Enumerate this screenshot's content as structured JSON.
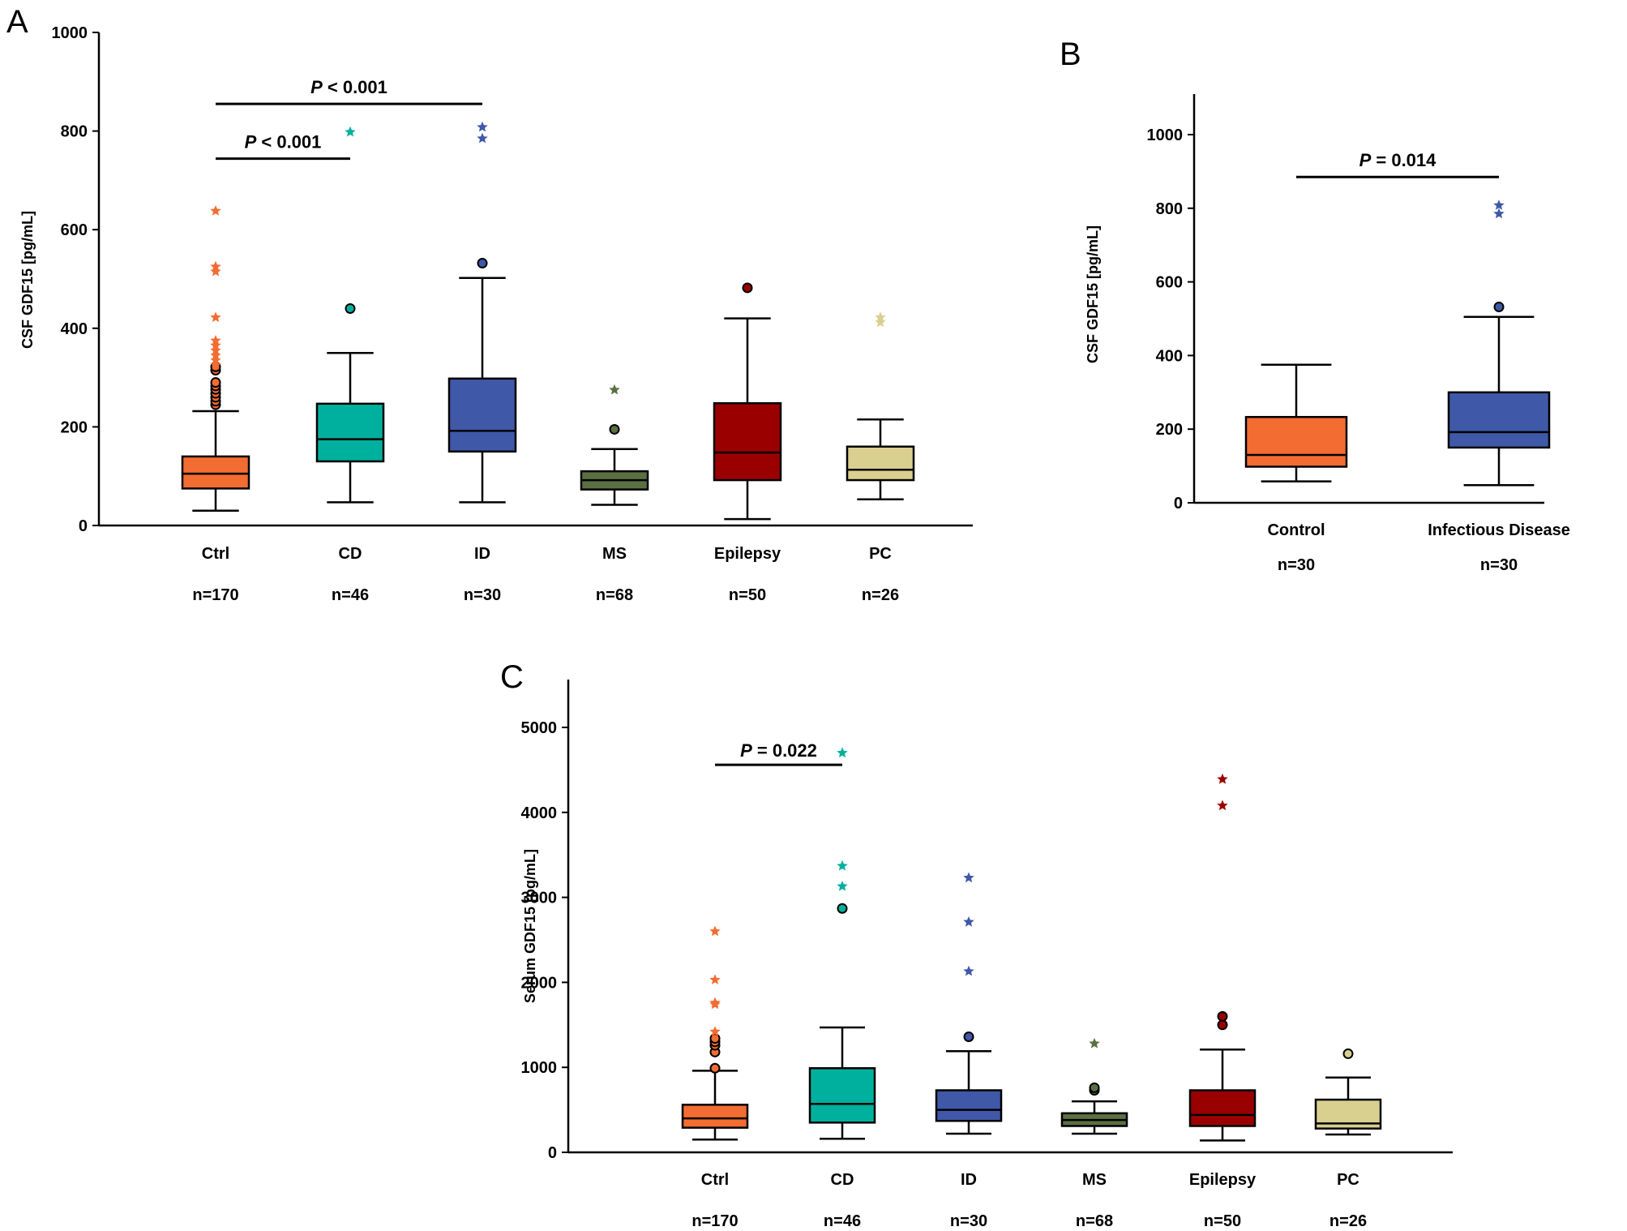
{
  "figure": {
    "panel_letters": [
      "A",
      "B",
      "C"
    ]
  },
  "chart_data": [
    {
      "panel": "A",
      "type": "box",
      "ylabel": "CSF GDF15 [pg/mL]",
      "ylim": [
        0,
        1000
      ],
      "yticks": [
        0,
        200,
        400,
        600,
        800,
        1000
      ],
      "categories": [
        "Ctrl",
        "CD",
        "ID",
        "MS",
        "Epilepsy",
        "PC"
      ],
      "n_labels": [
        "n=170",
        "n=46",
        "n=30",
        "n=68",
        "n=50",
        "n=26"
      ],
      "colors": [
        "#F36C32",
        "#00B09E",
        "#3F58A8",
        "#5A7042",
        "#9B0000",
        "#D9CF8F"
      ],
      "boxes": [
        {
          "whisker_low": 30,
          "q1": 75,
          "median": 105,
          "q3": 140,
          "whisker_high": 232,
          "outliers": [
            245,
            252,
            260,
            268,
            276,
            283,
            290,
            315,
            322
          ],
          "extremes": [
            325,
            335,
            345,
            355,
            365,
            375,
            422,
            515,
            525,
            638
          ]
        },
        {
          "whisker_low": 47,
          "q1": 130,
          "median": 175,
          "q3": 247,
          "whisker_high": 350,
          "outliers": [
            440
          ],
          "extremes": [
            798
          ]
        },
        {
          "whisker_low": 47,
          "q1": 150,
          "median": 192,
          "q3": 298,
          "whisker_high": 502,
          "outliers": [
            532
          ],
          "extremes": [
            785,
            808
          ]
        },
        {
          "whisker_low": 42,
          "q1": 73,
          "median": 92,
          "q3": 110,
          "whisker_high": 155,
          "outliers": [
            195
          ],
          "extremes": [
            275
          ]
        },
        {
          "whisker_low": 13,
          "q1": 92,
          "median": 148,
          "q3": 248,
          "whisker_high": 420,
          "outliers": [
            482
          ],
          "extremes": []
        },
        {
          "whisker_low": 53,
          "q1": 92,
          "median": 113,
          "q3": 160,
          "whisker_high": 215,
          "outliers": [],
          "extremes": [
            412,
            422
          ]
        }
      ],
      "comparisons": [
        {
          "from": "Ctrl",
          "to": "ID",
          "y": 855,
          "p_symbol": "P",
          "p_rest": " < 0.001"
        },
        {
          "from": "Ctrl",
          "to": "CD",
          "y": 744,
          "p_symbol": "P",
          "p_rest": " < 0.001"
        }
      ]
    },
    {
      "panel": "B",
      "type": "box",
      "ylabel": "CSF GDF15 [pg/mL]",
      "ylim": [
        0,
        1100
      ],
      "yticks": [
        0,
        200,
        400,
        600,
        800,
        1000
      ],
      "categories": [
        "Control",
        "Infectious Disease"
      ],
      "n_labels": [
        "n=30",
        "n=30"
      ],
      "colors": [
        "#F36C32",
        "#3F58A8"
      ],
      "boxes": [
        {
          "whisker_low": 58,
          "q1": 98,
          "median": 130,
          "q3": 233,
          "whisker_high": 375,
          "outliers": [],
          "extremes": []
        },
        {
          "whisker_low": 48,
          "q1": 150,
          "median": 192,
          "q3": 300,
          "whisker_high": 505,
          "outliers": [
            532
          ],
          "extremes": [
            785,
            808
          ]
        }
      ],
      "comparisons": [
        {
          "from": "Control",
          "to": "Infectious Disease",
          "y": 885,
          "p_symbol": "P",
          "p_rest": " = 0.014"
        }
      ]
    },
    {
      "panel": "C",
      "type": "box",
      "ylabel": "Serum GDF15 [pg/mL]",
      "ylim": [
        0,
        5500
      ],
      "yticks": [
        0,
        1000,
        2000,
        3000,
        4000,
        5000
      ],
      "categories": [
        "Ctrl",
        "CD",
        "ID",
        "MS",
        "Epilepsy",
        "PC"
      ],
      "n_labels": [
        "n=170",
        "n=46",
        "n=30",
        "n=68",
        "n=50",
        "n=26"
      ],
      "colors": [
        "#F36C32",
        "#00B09E",
        "#3F58A8",
        "#5A7042",
        "#9B0000",
        "#D9CF8F"
      ],
      "boxes": [
        {
          "whisker_low": 150,
          "q1": 290,
          "median": 400,
          "q3": 560,
          "whisker_high": 960,
          "outliers": [
            990,
            1180,
            1260,
            1300,
            1340
          ],
          "extremes": [
            1420,
            1740,
            1760,
            2030,
            2600
          ]
        },
        {
          "whisker_low": 160,
          "q1": 350,
          "median": 570,
          "q3": 990,
          "whisker_high": 1470,
          "outliers": [
            2870
          ],
          "extremes": [
            3130,
            3370,
            4700
          ]
        },
        {
          "whisker_low": 220,
          "q1": 370,
          "median": 500,
          "q3": 730,
          "whisker_high": 1190,
          "outliers": [
            1360
          ],
          "extremes": [
            2130,
            2710,
            3230
          ]
        },
        {
          "whisker_low": 220,
          "q1": 310,
          "median": 380,
          "q3": 460,
          "whisker_high": 600,
          "outliers": [
            730,
            760
          ],
          "extremes": [
            1280
          ]
        },
        {
          "whisker_low": 140,
          "q1": 310,
          "median": 440,
          "q3": 730,
          "whisker_high": 1210,
          "outliers": [
            1500,
            1600
          ],
          "extremes": [
            4080,
            4390
          ]
        },
        {
          "whisker_low": 210,
          "q1": 280,
          "median": 340,
          "q3": 620,
          "whisker_high": 880,
          "outliers": [
            1160
          ],
          "extremes": []
        }
      ],
      "comparisons": [
        {
          "from": "Ctrl",
          "to": "CD",
          "y": 4560,
          "p_symbol": "P",
          "p_rest": " = 0.022"
        }
      ]
    }
  ]
}
